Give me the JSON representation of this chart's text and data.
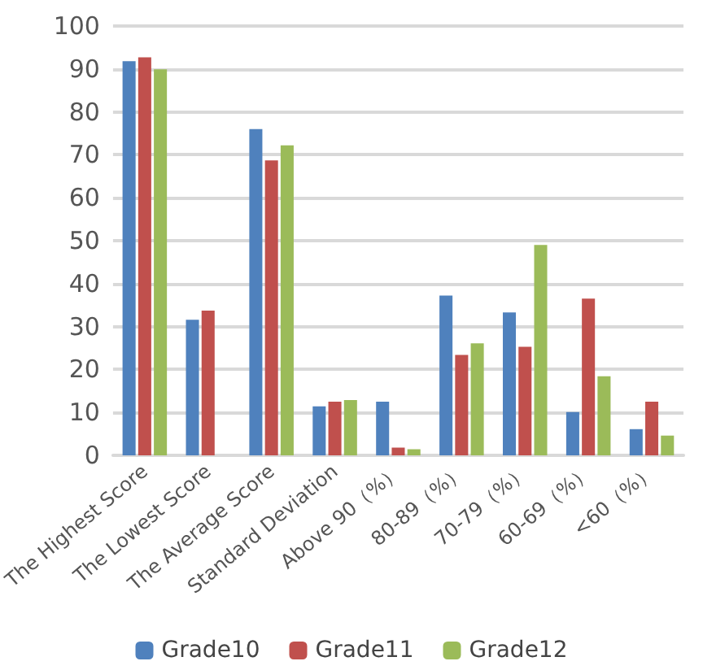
{
  "chart_data": {
    "type": "bar",
    "categories": [
      "The Highest Score",
      "The Lowest Score",
      "The Average Score",
      "Standard Deviation",
      "Above 90（%）",
      "80-89（%）",
      "70-79（%）",
      "60-69（%）",
      "<60（%）"
    ],
    "series": [
      {
        "name": "Grade10",
        "color": "#4f81bd",
        "values": [
          91.8,
          31.6,
          76,
          11.4,
          12.5,
          37.2,
          33.3,
          10.1,
          6.1
        ]
      },
      {
        "name": "Grade11",
        "color": "#c0504d",
        "values": [
          92.7,
          33.7,
          68.7,
          12.5,
          1.8,
          23.4,
          25.3,
          36.5,
          12.5
        ]
      },
      {
        "name": "Grade12",
        "color": "#9bbb59",
        "values": [
          89.9,
          null,
          72.2,
          12.9,
          1.4,
          26.1,
          49,
          18.4,
          4.6
        ]
      }
    ],
    "ylim": [
      0,
      100
    ],
    "yticks": [
      0,
      10,
      20,
      30,
      40,
      50,
      60,
      70,
      80,
      90,
      100
    ],
    "grid": "y",
    "legend": "bottom"
  }
}
